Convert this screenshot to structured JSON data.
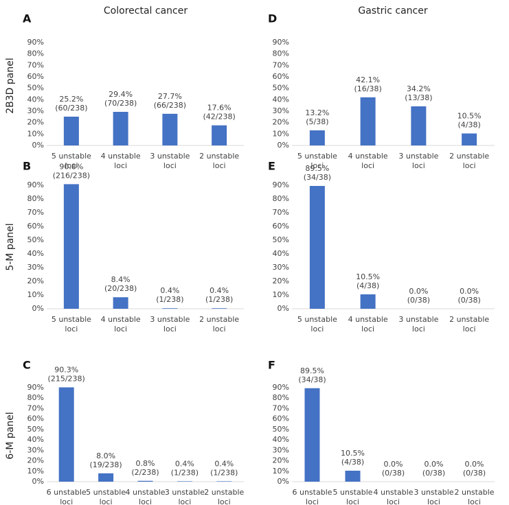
{
  "columns": [
    "Colorectal cancer",
    "Gastric cancer"
  ],
  "rows": [
    "2B3D panel",
    "5-M panel",
    "6-M panel"
  ],
  "chart_data": [
    {
      "type": "bar",
      "panel": "A",
      "categories": [
        "5 unstable loci",
        "4 unstable loci",
        "3 unstable loci",
        "2 unstable loci"
      ],
      "values": [
        25.2,
        29.4,
        27.7,
        17.6
      ],
      "value_labels": [
        "25.2%",
        "29.4%",
        "27.7%",
        "17.6%"
      ],
      "counts": [
        "(60/238)",
        "(70/238)",
        "(66/238)",
        "(42/238)"
      ],
      "color": "#4472c4",
      "ylim": [
        0,
        90
      ],
      "yticks": [
        {
          "value": 0,
          "label": "0%"
        },
        {
          "value": 10,
          "label": "10%"
        },
        {
          "value": 20,
          "label": "20%"
        },
        {
          "value": 30,
          "label": "30%"
        },
        {
          "value": 40,
          "label": "40%"
        },
        {
          "value": 50,
          "label": "50%"
        },
        {
          "value": 60,
          "label": "60%"
        },
        {
          "value": 70,
          "label": "70%"
        },
        {
          "value": 80,
          "label": "80%"
        },
        {
          "value": 90,
          "label": "90%"
        }
      ]
    },
    {
      "type": "bar",
      "panel": "B",
      "categories": [
        "5 unstable loci",
        "4 unstable loci",
        "3 unstable loci",
        "2 unstable loci"
      ],
      "values": [
        90.8,
        8.4,
        0.4,
        0.4
      ],
      "value_labels": [
        "90.8%",
        "8.4%",
        "0.4%",
        "0.4%"
      ],
      "counts": [
        "(216/238)",
        "(20/238)",
        "(1/238)",
        "(1/238)"
      ],
      "color": "#4472c4",
      "ylim": [
        0,
        90
      ],
      "yticks": [
        {
          "value": 0,
          "label": "0%"
        },
        {
          "value": 10,
          "label": "10%"
        },
        {
          "value": 20,
          "label": "20%"
        },
        {
          "value": 30,
          "label": "30%"
        },
        {
          "value": 40,
          "label": "40%"
        },
        {
          "value": 50,
          "label": "50%"
        },
        {
          "value": 60,
          "label": "60%"
        },
        {
          "value": 70,
          "label": "70%"
        },
        {
          "value": 80,
          "label": "80%"
        },
        {
          "value": 90,
          "label": "90%"
        }
      ]
    },
    {
      "type": "bar",
      "panel": "C",
      "categories": [
        "6 unstable loci",
        "5 unstable loci",
        "4 unstable loci",
        "3 unstable loci",
        "2 unstable loci"
      ],
      "values": [
        90.3,
        8.0,
        0.8,
        0.4,
        0.4
      ],
      "value_labels": [
        "90.3%",
        "8.0%",
        "0.8%",
        "0.4%",
        "0.4%"
      ],
      "counts": [
        "(215/238)",
        "(19/238)",
        "(2/238)",
        "(1/238)",
        "(1/238)"
      ],
      "color": "#4472c4",
      "ylim": [
        0,
        90
      ],
      "yticks": [
        {
          "value": 0,
          "label": "0%"
        },
        {
          "value": 10,
          "label": "10%"
        },
        {
          "value": 20,
          "label": "20%"
        },
        {
          "value": 30,
          "label": "30%"
        },
        {
          "value": 40,
          "label": "40%"
        },
        {
          "value": 50,
          "label": "50%"
        },
        {
          "value": 60,
          "label": "60%"
        },
        {
          "value": 70,
          "label": "70%"
        },
        {
          "value": 80,
          "label": "80%"
        },
        {
          "value": 90,
          "label": "90%"
        }
      ]
    },
    {
      "type": "bar",
      "panel": "D",
      "categories": [
        "5 unstable loci",
        "4 unstable loci",
        "3 unstable loci",
        "2 unstable loci"
      ],
      "values": [
        13.2,
        42.1,
        34.2,
        10.5
      ],
      "value_labels": [
        "13.2%",
        "42.1%",
        "34.2%",
        "10.5%"
      ],
      "counts": [
        "(5/38)",
        "(16/38)",
        "(13/38)",
        "(4/38)"
      ],
      "color": "#4472c4",
      "ylim": [
        0,
        90
      ],
      "yticks": [
        {
          "value": 0,
          "label": "0%"
        },
        {
          "value": 10,
          "label": "10%"
        },
        {
          "value": 20,
          "label": "20%"
        },
        {
          "value": 30,
          "label": "30%"
        },
        {
          "value": 40,
          "label": "40%"
        },
        {
          "value": 50,
          "label": "50%"
        },
        {
          "value": 60,
          "label": "60%"
        },
        {
          "value": 70,
          "label": "70%"
        },
        {
          "value": 80,
          "label": "80%"
        },
        {
          "value": 90,
          "label": "90%"
        }
      ]
    },
    {
      "type": "bar",
      "panel": "E",
      "categories": [
        "5 unstable loci",
        "4 unstable loci",
        "3 unstable loci",
        "2 unstable loci"
      ],
      "values": [
        89.5,
        10.5,
        0.0,
        0.0
      ],
      "value_labels": [
        "89.5%",
        "10.5%",
        "0.0%",
        "0.0%"
      ],
      "counts": [
        "(34/38)",
        "(4/38)",
        "(0/38)",
        "(0/38)"
      ],
      "color": "#4472c4",
      "ylim": [
        0,
        90
      ],
      "yticks": [
        {
          "value": 0,
          "label": "0%"
        },
        {
          "value": 10,
          "label": "10%"
        },
        {
          "value": 20,
          "label": "20%"
        },
        {
          "value": 30,
          "label": "30%"
        },
        {
          "value": 40,
          "label": "40%"
        },
        {
          "value": 50,
          "label": "50%"
        },
        {
          "value": 60,
          "label": "60%"
        },
        {
          "value": 70,
          "label": "70%"
        },
        {
          "value": 80,
          "label": "80%"
        },
        {
          "value": 90,
          "label": "90%"
        }
      ]
    },
    {
      "type": "bar",
      "panel": "F",
      "categories": [
        "6 unstable loci",
        "5 unstable loci",
        "4 unstable loci",
        "3 unstable loci",
        "2 unstable loci"
      ],
      "values": [
        89.5,
        10.5,
        0.0,
        0.0,
        0.0
      ],
      "value_labels": [
        "89.5%",
        "10.5%",
        "0.0%",
        "0.0%",
        "0.0%"
      ],
      "counts": [
        "(34/38)",
        "(4/38)",
        "(0/38)",
        "(0/38)",
        "(0/38)"
      ],
      "color": "#4472c4",
      "ylim": [
        0,
        90
      ],
      "yticks": [
        {
          "value": 0,
          "label": "0%"
        },
        {
          "value": 10,
          "label": "10%"
        },
        {
          "value": 20,
          "label": "20%"
        },
        {
          "value": 30,
          "label": "30%"
        },
        {
          "value": 40,
          "label": "40%"
        },
        {
          "value": 50,
          "label": "50%"
        },
        {
          "value": 60,
          "label": "60%"
        },
        {
          "value": 70,
          "label": "70%"
        },
        {
          "value": 80,
          "label": "80%"
        },
        {
          "value": 90,
          "label": "90%"
        }
      ]
    }
  ]
}
